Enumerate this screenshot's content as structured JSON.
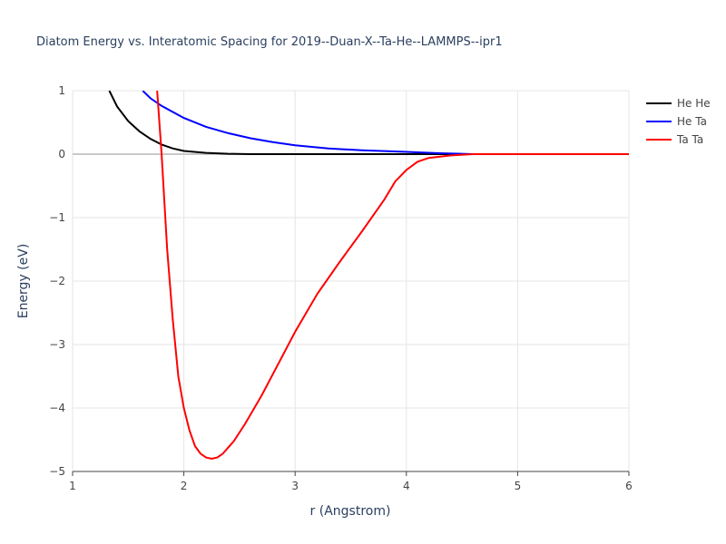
{
  "chart_data": {
    "type": "line",
    "title": "Diatom Energy vs. Interatomic Spacing for 2019--Duan-X--Ta-He--LAMMPS--ipr1",
    "xlabel": "r (Angstrom)",
    "ylabel": "Energy (eV)",
    "xlim": [
      1,
      6
    ],
    "ylim": [
      -5,
      1
    ],
    "xticks": [
      1,
      2,
      3,
      4,
      5,
      6
    ],
    "yticks": [
      {
        "value": -5,
        "label": "−5"
      },
      {
        "value": -4,
        "label": "−4"
      },
      {
        "value": -3,
        "label": "−3"
      },
      {
        "value": -2,
        "label": "−2"
      },
      {
        "value": -1,
        "label": "−1"
      },
      0,
      1
    ],
    "grid": true,
    "legend": "outside-top-right",
    "series": [
      {
        "name": "He He",
        "color": "#000000",
        "x": [
          1.33,
          1.4,
          1.5,
          1.6,
          1.7,
          1.8,
          1.9,
          2.0,
          2.2,
          2.4,
          2.6,
          3.0,
          4.0,
          5.0,
          6.0
        ],
        "values": [
          1.0,
          0.75,
          0.52,
          0.36,
          0.24,
          0.15,
          0.09,
          0.05,
          0.02,
          0.005,
          0,
          0,
          0,
          0,
          0
        ]
      },
      {
        "name": "He Ta",
        "color": "#0000ff",
        "x": [
          1.63,
          1.7,
          1.8,
          2.0,
          2.2,
          2.4,
          2.6,
          2.8,
          3.0,
          3.3,
          3.6,
          4.0,
          4.3,
          4.6,
          5.0,
          6.0
        ],
        "values": [
          1.0,
          0.88,
          0.76,
          0.57,
          0.43,
          0.33,
          0.25,
          0.19,
          0.14,
          0.09,
          0.06,
          0.035,
          0.015,
          0,
          0,
          0
        ]
      },
      {
        "name": "Ta Ta",
        "color": "#ff0000",
        "x": [
          1.76,
          1.8,
          1.85,
          1.9,
          1.95,
          2.0,
          2.05,
          2.1,
          2.15,
          2.2,
          2.25,
          2.3,
          2.35,
          2.45,
          2.55,
          2.7,
          2.85,
          3.0,
          3.2,
          3.4,
          3.6,
          3.8,
          3.9,
          4.0,
          4.1,
          4.2,
          4.4,
          4.6,
          5.0,
          6.0
        ],
        "values": [
          1.0,
          0,
          -1.5,
          -2.6,
          -3.5,
          -4.0,
          -4.35,
          -4.6,
          -4.72,
          -4.78,
          -4.8,
          -4.78,
          -4.72,
          -4.52,
          -4.25,
          -3.8,
          -3.3,
          -2.8,
          -2.2,
          -1.7,
          -1.22,
          -0.72,
          -0.43,
          -0.25,
          -0.12,
          -0.06,
          -0.02,
          0,
          0,
          0
        ]
      }
    ]
  }
}
